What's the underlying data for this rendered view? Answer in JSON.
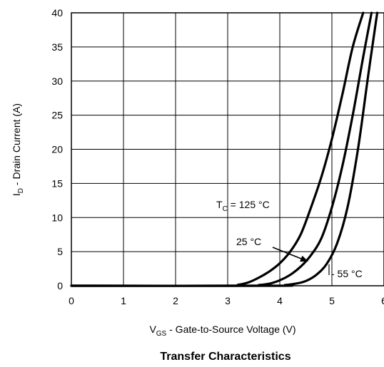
{
  "chart_data": {
    "type": "line",
    "title": "Transfer Characteristics",
    "xlabel": {
      "main": "V",
      "sub": "GS",
      "rest": " - Gate-to-Source Voltage (V)"
    },
    "ylabel": {
      "main": "I",
      "sub": "D",
      "rest": " - Drain Current  (A)"
    },
    "xlim": [
      0,
      6
    ],
    "ylim": [
      0,
      40
    ],
    "xticks": [
      "0",
      "1",
      "2",
      "3",
      "4",
      "5",
      "6"
    ],
    "yticks": [
      "0",
      "5",
      "10",
      "15",
      "20",
      "25",
      "30",
      "35",
      "40"
    ],
    "grid": true,
    "series": [
      {
        "name": "TC = 125 °C",
        "x": [
          0,
          3.0,
          3.2,
          3.4,
          3.6,
          3.8,
          4.0,
          4.2,
          4.4,
          4.6,
          4.8,
          5.0,
          5.2,
          5.4,
          5.6
        ],
        "y": [
          0,
          0,
          0.15,
          0.5,
          1.2,
          2.1,
          3.3,
          5.0,
          7.5,
          11.5,
          16.0,
          21.5,
          28.0,
          35.0,
          40.0
        ]
      },
      {
        "name": "25 °C",
        "x": [
          0,
          3.4,
          3.6,
          3.8,
          4.0,
          4.2,
          4.4,
          4.6,
          4.8,
          5.0,
          5.2,
          5.4,
          5.6,
          5.76
        ],
        "y": [
          0,
          0,
          0.1,
          0.3,
          0.8,
          1.6,
          2.8,
          4.5,
          7.0,
          11.5,
          17.5,
          25.0,
          33.5,
          40.0
        ]
      },
      {
        "name": "- 55 °C",
        "x": [
          0,
          3.9,
          4.1,
          4.3,
          4.5,
          4.7,
          4.9,
          5.1,
          5.3,
          5.5,
          5.7,
          5.87
        ],
        "y": [
          0,
          0,
          0.1,
          0.3,
          0.7,
          1.6,
          3.2,
          6.2,
          11.5,
          20.0,
          31.0,
          40.0
        ]
      }
    ],
    "annotations": {
      "tc": {
        "main": "T",
        "sub": "C",
        "rest": " = 125 °C"
      },
      "t25": "25 °C",
      "t55": "- 55 °C"
    }
  }
}
